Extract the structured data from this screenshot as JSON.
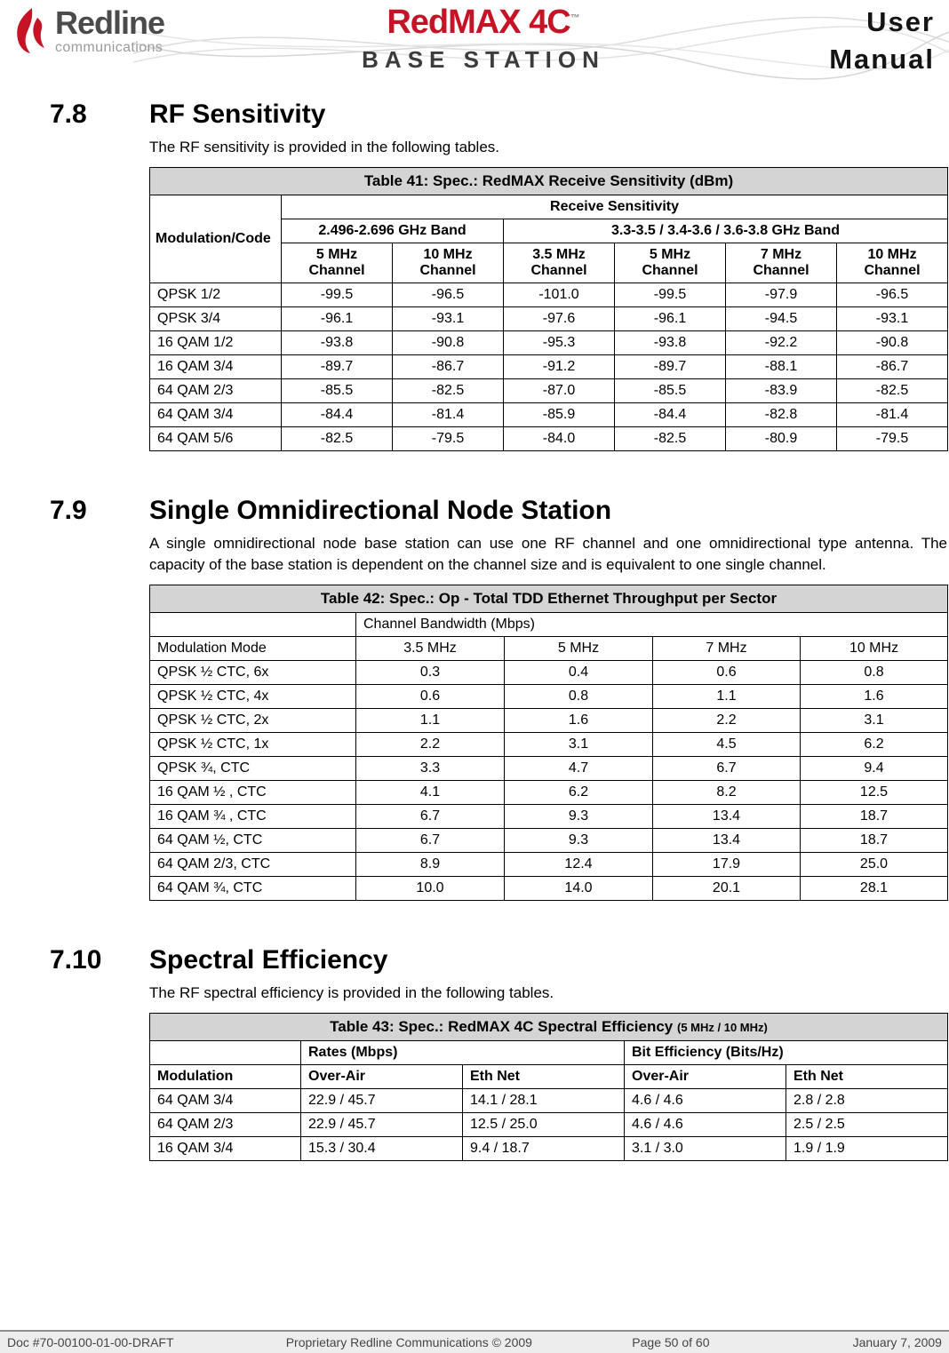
{
  "colors": {
    "brand_red": "#c41425",
    "table_title_bg": "#d4d4d4",
    "footer_text": "#454545"
  },
  "header": {
    "logo_brand": "Redline",
    "logo_sub": "communications",
    "product_name": "RedMAX 4C",
    "product_tm": "™",
    "station": "BASE STATION",
    "doc_type_line1": "User",
    "doc_type_line2": "Manual"
  },
  "sections": {
    "s78": {
      "number": "7.8",
      "title": "RF Sensitivity",
      "body": "The RF sensitivity is provided in the following tables."
    },
    "s79": {
      "number": "7.9",
      "title": "Single Omnidirectional Node Station",
      "body": "A single omnidirectional node base station can use one RF channel and one omnidirectional type antenna. The capacity of the base station is dependent on the channel size and is equivalent to one single channel."
    },
    "s710": {
      "number": "7.10",
      "title": "Spectral Efficiency",
      "body": "The RF spectral efficiency is provided in the following tables."
    }
  },
  "table41": {
    "title": "Table 41: Spec.: RedMAX Receive Sensitivity (dBm)",
    "col_modulation": "Modulation/Code",
    "group_header": "Receive Sensitivity",
    "band1": "2.496-2.696 GHz Band",
    "band2": "3.3-3.5 / 3.4-3.6 / 3.6-3.8 GHz Band",
    "subcols": [
      "5 MHz Channel",
      "10 MHz Channel",
      "3.5 MHz Channel",
      "5 MHz Channel",
      "7 MHz Channel",
      "10 MHz Channel"
    ],
    "rows": [
      [
        "QPSK 1/2",
        "-99.5",
        "-96.5",
        "-101.0",
        "-99.5",
        "-97.9",
        "-96.5"
      ],
      [
        "QPSK 3/4",
        "-96.1",
        "-93.1",
        "-97.6",
        "-96.1",
        "-94.5",
        "-93.1"
      ],
      [
        "16 QAM 1/2",
        "-93.8",
        "-90.8",
        "-95.3",
        "-93.8",
        "-92.2",
        "-90.8"
      ],
      [
        "16 QAM 3/4",
        "-89.7",
        "-86.7",
        "-91.2",
        "-89.7",
        "-88.1",
        "-86.7"
      ],
      [
        "64 QAM 2/3",
        "-85.5",
        "-82.5",
        "-87.0",
        "-85.5",
        "-83.9",
        "-82.5"
      ],
      [
        "64 QAM 3/4",
        "-84.4",
        "-81.4",
        "-85.9",
        "-84.4",
        "-82.8",
        "-81.4"
      ],
      [
        "64 QAM 5/6",
        "-82.5",
        "-79.5",
        "-84.0",
        "-82.5",
        "-80.9",
        "-79.5"
      ]
    ]
  },
  "table42": {
    "title": "Table 42: Spec.: Op - Total TDD Ethernet Throughput per Sector",
    "group_header": "Channel Bandwidth (Mbps)",
    "col_modulation": "Modulation Mode",
    "subcols": [
      "3.5 MHz",
      "5 MHz",
      "7 MHz",
      "10 MHz"
    ],
    "rows": [
      [
        "QPSK ½ CTC, 6x",
        "0.3",
        "0.4",
        "0.6",
        "0.8"
      ],
      [
        "QPSK ½ CTC, 4x",
        "0.6",
        "0.8",
        "1.1",
        "1.6"
      ],
      [
        "QPSK ½ CTC, 2x",
        "1.1",
        "1.6",
        "2.2",
        "3.1"
      ],
      [
        "QPSK ½ CTC, 1x",
        "2.2",
        "3.1",
        "4.5",
        "6.2"
      ],
      [
        "QPSK ¾, CTC",
        "3.3",
        "4.7",
        "6.7",
        "9.4"
      ],
      [
        "16 QAM ½ , CTC",
        "4.1",
        "6.2",
        "8.2",
        "12.5"
      ],
      [
        "16 QAM ¾ , CTC",
        "6.7",
        "9.3",
        "13.4",
        "18.7"
      ],
      [
        "64 QAM ½, CTC",
        "6.7",
        "9.3",
        "13.4",
        "18.7"
      ],
      [
        "64 QAM 2/3, CTC",
        "8.9",
        "12.4",
        "17.9",
        "25.0"
      ],
      [
        "64 QAM ¾, CTC",
        "10.0",
        "14.0",
        "20.1",
        "28.1"
      ]
    ]
  },
  "table43": {
    "title_main": "Table 43: Spec.: RedMAX 4C Spectral Efficiency ",
    "title_note": "(5 MHz / 10 MHz)",
    "group1": "Rates (Mbps)",
    "group2": "Bit Efficiency (Bits/Hz)",
    "col_modulation": "Modulation",
    "subcols": [
      "Over-Air",
      "Eth Net",
      "Over-Air",
      "Eth Net"
    ],
    "rows": [
      [
        "64 QAM 3/4",
        "22.9 / 45.7",
        "14.1 / 28.1",
        "4.6 / 4.6",
        "2.8 / 2.8"
      ],
      [
        "64 QAM 2/3",
        "22.9 / 45.7",
        "12.5 / 25.0",
        "4.6 / 4.6",
        "2.5 / 2.5"
      ],
      [
        "16 QAM 3/4",
        "15.3 / 30.4",
        "9.4 / 18.7",
        "3.1 / 3.0",
        "1.9 / 1.9"
      ]
    ]
  },
  "footer": {
    "doc": "Doc #70-00100-01-00-DRAFT",
    "copyright": "Proprietary Redline Communications © 2009",
    "page": "Page 50 of 60",
    "date": "January 7, 2009"
  }
}
